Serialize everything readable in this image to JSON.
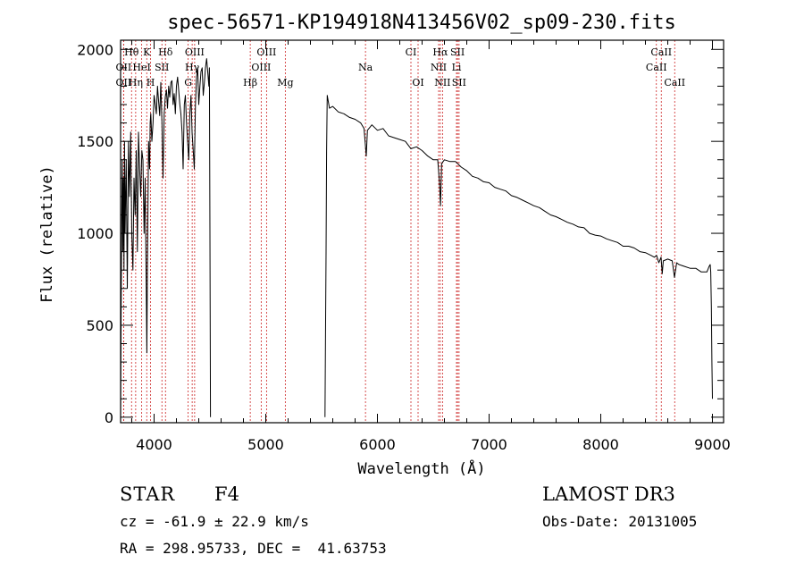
{
  "chart_data": {
    "type": "line",
    "title": "spec-56571-KP194918N413456V02_sp09-230.fits",
    "xlabel": "Wavelength (Å)",
    "ylabel": "Flux (relative)",
    "xlim": [
      3700,
      9100
    ],
    "ylim": [
      -30,
      2050
    ],
    "xticks": [
      4000,
      5000,
      6000,
      7000,
      8000,
      9000
    ],
    "xtick_labels": [
      "4000",
      "5000",
      "6000",
      "7000",
      "8000",
      "9000"
    ],
    "yticks": [
      0,
      500,
      1000,
      1500,
      2000
    ],
    "ytick_labels": [
      "0",
      "500",
      "1000",
      "1500",
      "2000"
    ],
    "grid": false,
    "series": [
      {
        "name": "flux",
        "segments": [
          {
            "x": [
              3700,
              3705,
              3710,
              3715,
              3720,
              3725,
              3730,
              3735,
              3740,
              3750,
              3760,
              3770,
              3780,
              3790,
              3800,
              3810,
              3820,
              3830,
              3840,
              3850,
              3860,
              3870,
              3880,
              3890,
              3900,
              3910,
              3920,
              3930,
              3935,
              3940,
              3950,
              3960,
              3965,
              3970,
              3980,
              3990,
              4000,
              4010,
              4020,
              4030,
              4040,
              4050,
              4060,
              4070,
              4080,
              4090,
              4100,
              4110,
              4120,
              4130,
              4140,
              4150,
              4160,
              4170,
              4180,
              4190,
              4200,
              4210,
              4220,
              4230,
              4240,
              4250,
              4260,
              4270,
              4280,
              4290,
              4300,
              4310,
              4320,
              4330,
              4340,
              4350,
              4360,
              4370,
              4380,
              4390,
              4400,
              4410,
              4420,
              4430,
              4440,
              4450,
              4460,
              4470,
              4480,
              4490,
              4495,
              4500,
              4505
            ],
            "y": [
              0,
              600,
              1100,
              1400,
              900,
              1300,
              800,
              1500,
              1000,
              1400,
              700,
              1500,
              1200,
              1550,
              1000,
              800,
              1300,
              1100,
              1450,
              900,
              1550,
              1350,
              1200,
              1450,
              1400,
              1000,
              1300,
              650,
              350,
              800,
              1500,
              1350,
              1600,
              1650,
              1500,
              1600,
              1750,
              1700,
              1650,
              1800,
              1720,
              1640,
              1820,
              1600,
              1300,
              1650,
              1740,
              1780,
              1680,
              1800,
              1740,
              1820,
              1830,
              1700,
              1760,
              1650,
              1800,
              1850,
              1780,
              1700,
              1650,
              1550,
              1350,
              1700,
              1750,
              1600,
              1500,
              1400,
              1650,
              1750,
              1550,
              1450,
              1350,
              1700,
              1850,
              1900,
              1700,
              1800,
              1880,
              1900,
              1750,
              1820,
              1900,
              1950,
              1880,
              1800,
              1900,
              1000,
              0
            ]
          },
          {
            "x": [
              5530,
              5540,
              5545,
              5550,
              5570,
              5600,
              5650,
              5700,
              5750,
              5800,
              5850,
              5880,
              5900,
              5910,
              5950,
              6000,
              6050,
              6100,
              6150,
              6200,
              6250,
              6300,
              6350,
              6400,
              6450,
              6500,
              6540,
              6555,
              6565,
              6575,
              6600,
              6650,
              6700,
              6750,
              6800,
              6850,
              6900,
              6950,
              7000,
              7050,
              7100,
              7150,
              7200,
              7250,
              7300,
              7350,
              7400,
              7450,
              7500,
              7550,
              7600,
              7650,
              7700,
              7750,
              7800,
              7850,
              7900,
              7950,
              8000,
              8050,
              8100,
              8150,
              8200,
              8250,
              8300,
              8350,
              8400,
              8450,
              8480,
              8500,
              8520,
              8540,
              8550,
              8560,
              8600,
              8640,
              8660,
              8680,
              8700,
              8750,
              8800,
              8850,
              8900,
              8950,
              8970,
              8980,
              8985,
              8990,
              8995,
              9000
            ],
            "y": [
              0,
              900,
              1450,
              1750,
              1680,
              1690,
              1660,
              1650,
              1630,
              1620,
              1600,
              1570,
              1420,
              1560,
              1590,
              1560,
              1570,
              1530,
              1520,
              1510,
              1500,
              1460,
              1470,
              1450,
              1420,
              1400,
              1400,
              1280,
              1150,
              1380,
              1400,
              1390,
              1390,
              1360,
              1340,
              1310,
              1300,
              1280,
              1275,
              1250,
              1240,
              1230,
              1205,
              1195,
              1180,
              1165,
              1150,
              1140,
              1120,
              1100,
              1090,
              1075,
              1060,
              1050,
              1035,
              1030,
              1000,
              990,
              985,
              970,
              960,
              950,
              930,
              930,
              920,
              900,
              895,
              880,
              870,
              880,
              840,
              870,
              780,
              850,
              860,
              850,
              760,
              840,
              830,
              820,
              810,
              810,
              790,
              790,
              820,
              830,
              790,
              600,
              300,
              100
            ]
          }
        ]
      }
    ],
    "lines": [
      {
        "name": "H-theta",
        "label": "Hθ",
        "x": 3798,
        "row": 1
      },
      {
        "name": "K",
        "label": "K",
        "x": 3934,
        "row": 1
      },
      {
        "name": "H-delta",
        "label": "Hδ",
        "x": 4102,
        "row": 1
      },
      {
        "name": "OIII-4363",
        "label": "OIII",
        "x": 4363,
        "row": 1
      },
      {
        "name": "OIII-5007",
        "label": "OIII",
        "x": 5007,
        "row": 1
      },
      {
        "name": "CI",
        "label": "CI",
        "x": 6300,
        "row": 1
      },
      {
        "name": "H-alpha",
        "label": "Hα",
        "x": 6563,
        "row": 1
      },
      {
        "name": "SII-1",
        "label": "SII",
        "x": 6717,
        "row": 1
      },
      {
        "name": "CaII-1",
        "label": "CaII",
        "x": 8542,
        "row": 1
      },
      {
        "name": "OII",
        "label": "OII",
        "x": 3727,
        "row": 2
      },
      {
        "name": "HeI",
        "label": "HeI",
        "x": 3889,
        "row": 2
      },
      {
        "name": "SII-4070",
        "label": "SII",
        "x": 4070,
        "row": 2
      },
      {
        "name": "H-gamma",
        "label": "Hγ",
        "x": 4341,
        "row": 2
      },
      {
        "name": "OIII-4959",
        "label": "OIII",
        "x": 4959,
        "row": 2
      },
      {
        "name": "Na",
        "label": "Na",
        "x": 5893,
        "row": 2
      },
      {
        "name": "NII-1",
        "label": "NII",
        "x": 6548,
        "row": 2
      },
      {
        "name": "Li",
        "label": "Li",
        "x": 6708,
        "row": 2
      },
      {
        "name": "CaII-2",
        "label": "CaII",
        "x": 8498,
        "row": 2
      },
      {
        "name": "OII-b",
        "label": "OII",
        "x": 3727,
        "row": 3
      },
      {
        "name": "H-eta",
        "label": "Hη",
        "x": 3835,
        "row": 3
      },
      {
        "name": "H",
        "label": "H",
        "x": 3968,
        "row": 3
      },
      {
        "name": "G",
        "label": "G",
        "x": 4305,
        "row": 3
      },
      {
        "name": "H-beta",
        "label": "Hβ",
        "x": 4861,
        "row": 3
      },
      {
        "name": "Mg",
        "label": "Mg",
        "x": 5175,
        "row": 3
      },
      {
        "name": "OI",
        "label": "OI",
        "x": 6364,
        "row": 3
      },
      {
        "name": "NII-2",
        "label": "NII",
        "x": 6583,
        "row": 3
      },
      {
        "name": "SII-2",
        "label": "SII",
        "x": 6731,
        "row": 3
      },
      {
        "name": "CaII-3",
        "label": "CaII",
        "x": 8662,
        "row": 3
      }
    ]
  },
  "info": {
    "class": "STAR",
    "subclass": "F4",
    "release": "LAMOST DR3",
    "redshift": "cz = -61.9 ± 22.9 km/s",
    "obs_date": "Obs-Date: 20131005",
    "coords": "RA = 298.95733, DEC =  41.63753"
  }
}
